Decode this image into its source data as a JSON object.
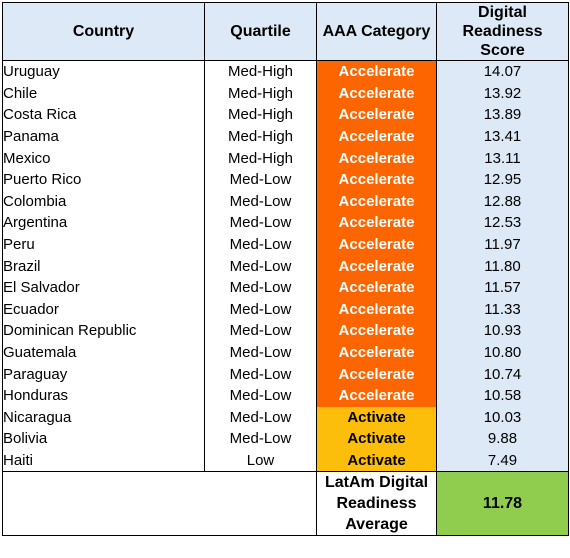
{
  "headers": {
    "country": "Country",
    "quartile": "Quartile",
    "category": "AAA Category",
    "score_line1": "Digital Readiness",
    "score_line2": "Score"
  },
  "colors": {
    "header_bg": "#dde9f6",
    "accelerate": "#fc6500",
    "activate": "#fdbd0b",
    "average": "#90cd4e"
  },
  "rows": [
    {
      "country": "Uruguay",
      "quartile": "Med-High",
      "category": "Accelerate",
      "score": "14.07"
    },
    {
      "country": "Chile",
      "quartile": "Med-High",
      "category": "Accelerate",
      "score": "13.92"
    },
    {
      "country": "Costa Rica",
      "quartile": "Med-High",
      "category": "Accelerate",
      "score": "13.89"
    },
    {
      "country": "Panama",
      "quartile": "Med-High",
      "category": "Accelerate",
      "score": "13.41"
    },
    {
      "country": "Mexico",
      "quartile": "Med-High",
      "category": "Accelerate",
      "score": "13.11"
    },
    {
      "country": "Puerto Rico",
      "quartile": "Med-Low",
      "category": "Accelerate",
      "score": "12.95"
    },
    {
      "country": "Colombia",
      "quartile": "Med-Low",
      "category": "Accelerate",
      "score": "12.88"
    },
    {
      "country": "Argentina",
      "quartile": "Med-Low",
      "category": "Accelerate",
      "score": "12.53"
    },
    {
      "country": "Peru",
      "quartile": "Med-Low",
      "category": "Accelerate",
      "score": "11.97"
    },
    {
      "country": "Brazil",
      "quartile": "Med-Low",
      "category": "Accelerate",
      "score": "11.80"
    },
    {
      "country": "El Salvador",
      "quartile": "Med-Low",
      "category": "Accelerate",
      "score": "11.57"
    },
    {
      "country": "Ecuador",
      "quartile": "Med-Low",
      "category": "Accelerate",
      "score": "11.33"
    },
    {
      "country": "Dominican Republic",
      "quartile": "Med-Low",
      "category": "Accelerate",
      "score": "10.93"
    },
    {
      "country": "Guatemala",
      "quartile": "Med-Low",
      "category": "Accelerate",
      "score": "10.80"
    },
    {
      "country": "Paraguay",
      "quartile": "Med-Low",
      "category": "Accelerate",
      "score": "10.74"
    },
    {
      "country": "Honduras",
      "quartile": "Med-Low",
      "category": "Accelerate",
      "score": "10.58"
    },
    {
      "country": "Nicaragua",
      "quartile": "Med-Low",
      "category": "Activate",
      "score": "10.03"
    },
    {
      "country": "Bolivia",
      "quartile": "Med-Low",
      "category": "Activate",
      "score": "9.88"
    },
    {
      "country": "Haiti",
      "quartile": "Low",
      "category": "Activate",
      "score": "7.49"
    }
  ],
  "average": {
    "label_line1": "LatAm Digital",
    "label_line2": "Readiness",
    "label_line3": "Average",
    "value": "11.78"
  }
}
